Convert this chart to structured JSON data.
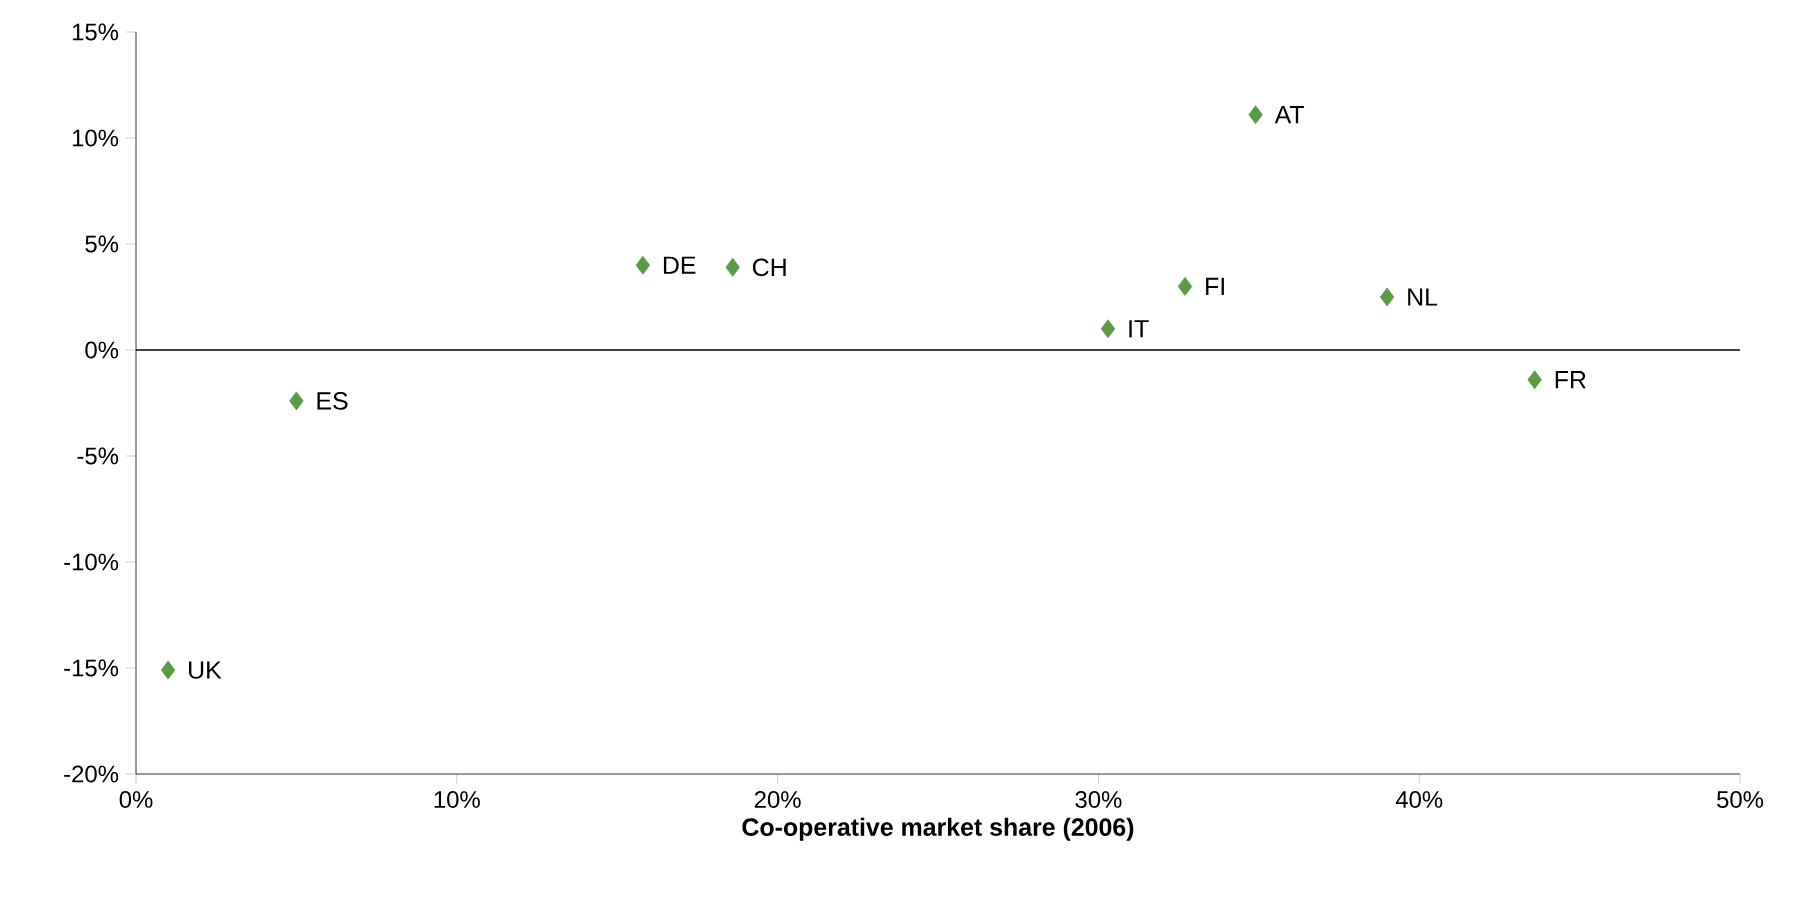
{
  "chart_data": {
    "type": "scatter",
    "xlabel": "Co-operative market share (2006)",
    "x": [
      1.0,
      5.0,
      15.8,
      18.6,
      30.3,
      32.7,
      34.9,
      39.0,
      43.6
    ],
    "series": [
      {
        "color": "#5b9a45",
        "values": [
          -15.1,
          -2.4,
          4.0,
          3.9,
          1.0,
          3.0,
          11.1,
          2.5,
          -1.4
        ]
      }
    ],
    "marker": "diamond",
    "xlim": [
      0,
      50
    ],
    "xticks": [
      {
        "value": 0,
        "label": "0%"
      },
      {
        "value": 10,
        "label": "10%"
      },
      {
        "value": 20,
        "label": "20%"
      },
      {
        "value": 30,
        "label": "30%"
      },
      {
        "value": 40,
        "label": "40%"
      },
      {
        "value": 50,
        "label": "50%"
      }
    ],
    "ylim": [
      -20,
      15
    ],
    "yticks": [
      {
        "value": -20,
        "label": "-20%"
      },
      {
        "value": -15,
        "label": "-15%"
      },
      {
        "value": -10,
        "label": "-10%"
      },
      {
        "value": -5,
        "label": "-5%"
      },
      {
        "value": 0,
        "label": "0%"
      },
      {
        "value": 5,
        "label": "5%"
      },
      {
        "value": 10,
        "label": "10%"
      },
      {
        "value": 15,
        "label": "15%"
      }
    ],
    "ref_lines": [
      {
        "axis": "y",
        "value": 0,
        "color": "#000000"
      }
    ],
    "annotations": [
      {
        "text": "UK",
        "x": 1.0,
        "y": -15.1
      },
      {
        "text": "ES",
        "x": 5.0,
        "y": -2.4
      },
      {
        "text": "DE",
        "x": 15.8,
        "y": 4.0
      },
      {
        "text": "CH",
        "x": 18.6,
        "y": 3.9
      },
      {
        "text": "IT",
        "x": 30.3,
        "y": 1.0
      },
      {
        "text": "FI",
        "x": 32.7,
        "y": 3.0
      },
      {
        "text": "AT",
        "x": 34.9,
        "y": 11.1
      },
      {
        "text": "NL",
        "x": 39.0,
        "y": 2.5
      },
      {
        "text": "FR",
        "x": 43.6,
        "y": -1.4
      }
    ]
  }
}
